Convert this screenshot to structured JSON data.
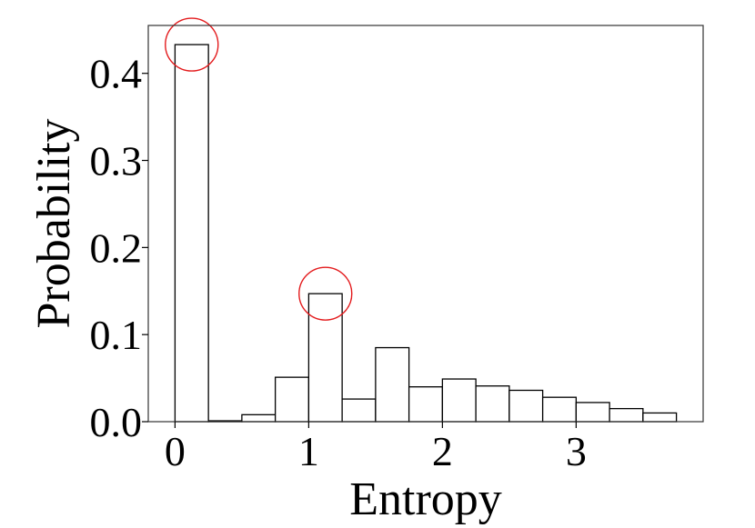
{
  "chart_data": {
    "type": "bar",
    "xlabel": "Entropy",
    "ylabel": "Probability",
    "xlim": [
      -0.2,
      3.95
    ],
    "ylim": [
      0.0,
      0.455
    ],
    "x_ticks": [
      {
        "value": 0,
        "label": "0"
      },
      {
        "value": 1,
        "label": "1"
      },
      {
        "value": 2,
        "label": "2"
      },
      {
        "value": 3,
        "label": "3"
      }
    ],
    "y_ticks": [
      {
        "value": 0.0,
        "label": "0.0"
      },
      {
        "value": 0.1,
        "label": "0.1"
      },
      {
        "value": 0.2,
        "label": "0.2"
      },
      {
        "value": 0.3,
        "label": "0.3"
      },
      {
        "value": 0.4,
        "label": "0.4"
      }
    ],
    "bin_edges": [
      0.0,
      0.25,
      0.5,
      0.75,
      1.0,
      1.25,
      1.5,
      1.75,
      2.0,
      2.25,
      2.5,
      2.75,
      3.0,
      3.25,
      3.5,
      3.75
    ],
    "values": [
      0.433,
      0.001,
      0.008,
      0.051,
      0.147,
      0.026,
      0.085,
      0.04,
      0.049,
      0.041,
      0.036,
      0.028,
      0.022,
      0.015,
      0.01
    ],
    "bar_fill": "#ffffff",
    "bar_stroke": "#000000",
    "highlights": [
      {
        "bin_index": 0,
        "color": "#e31a1c"
      },
      {
        "bin_index": 4,
        "color": "#e31a1c"
      }
    ],
    "grid": false,
    "legend": "none"
  }
}
